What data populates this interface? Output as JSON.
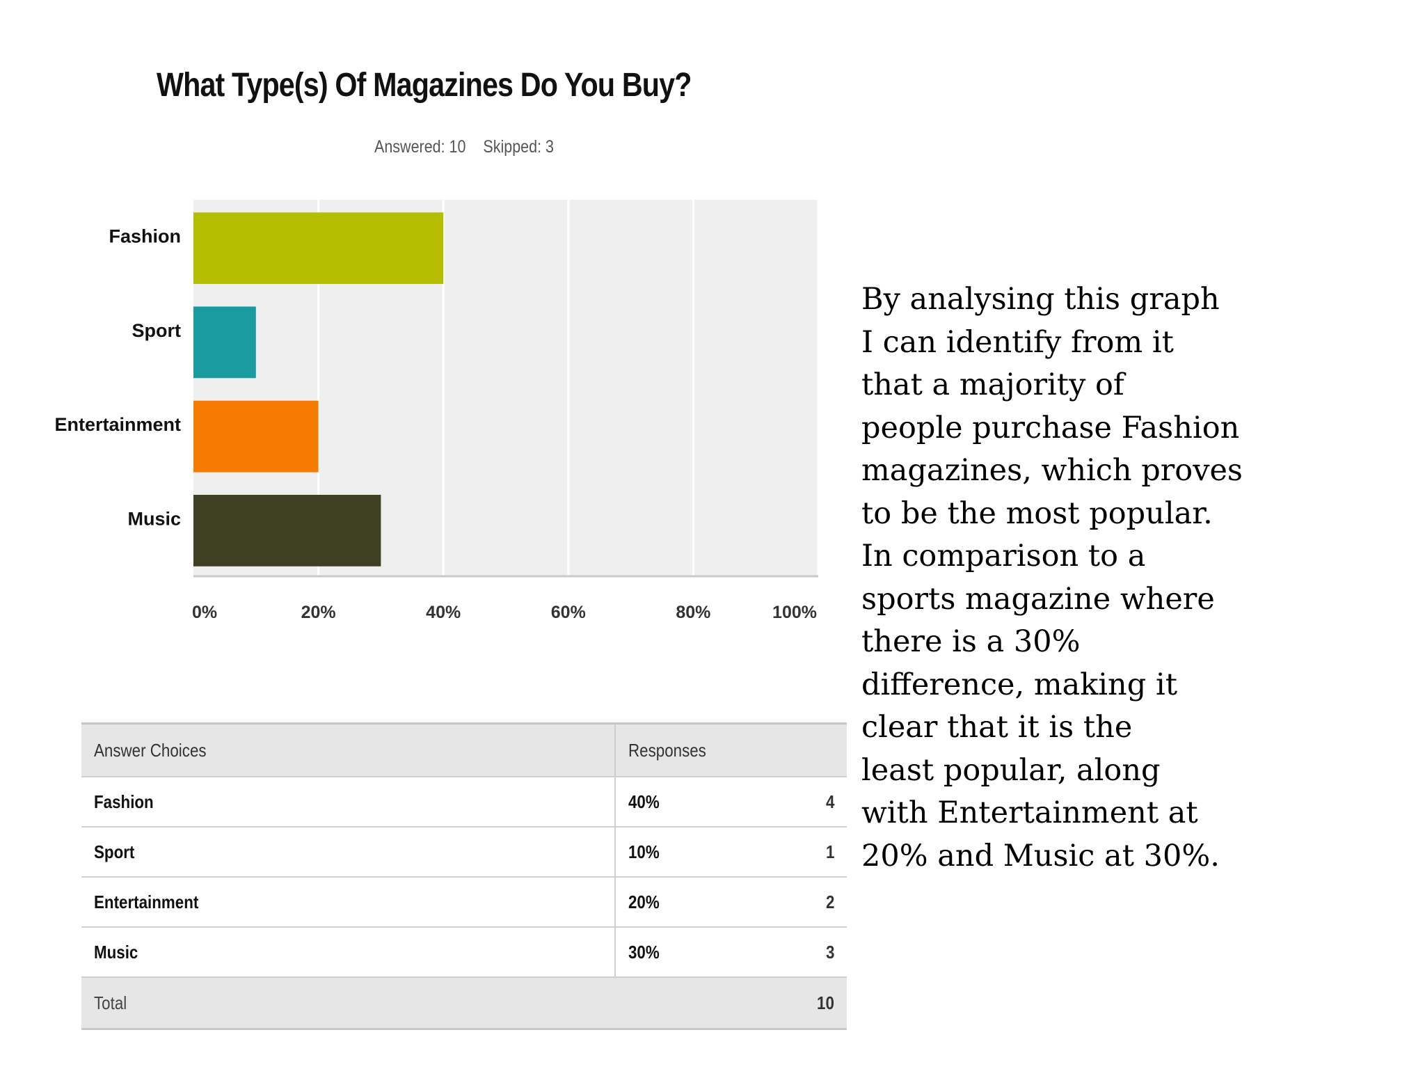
{
  "chart_data": {
    "type": "bar",
    "orientation": "horizontal",
    "title": "What Type(s) Of Magazines Do You Buy?",
    "subtitle": {
      "answered": "Answered: 10",
      "skipped": "Skipped: 3"
    },
    "categories": [
      "Fashion",
      "Sport",
      "Entertainment",
      "Music"
    ],
    "values": [
      40,
      10,
      20,
      30
    ],
    "colors": [
      "#b5bd00",
      "#1a9ba0",
      "#f57c00",
      "#3f4023"
    ],
    "xlim": [
      0,
      100
    ],
    "ticks": [
      "0%",
      "20%",
      "40%",
      "60%",
      "80%",
      "100%"
    ],
    "tick_values": [
      0,
      20,
      40,
      60,
      80,
      100
    ],
    "grid": true,
    "plot_background": "#efefef"
  },
  "table": {
    "headers": {
      "choice": "Answer Choices",
      "responses": "Responses"
    },
    "rows": [
      {
        "choice": "Fashion",
        "percent": "40%",
        "count": "4"
      },
      {
        "choice": "Sport",
        "percent": "10%",
        "count": "1"
      },
      {
        "choice": "Entertainment",
        "percent": "20%",
        "count": "2"
      },
      {
        "choice": "Music",
        "percent": "30%",
        "count": "3"
      }
    ],
    "total_label": "Total",
    "total_value": "10"
  },
  "analysis": "By analysing this graph\nI can identify from it\nthat a majority of\npeople purchase Fashion\nmagazines, which proves\nto be the most popular.\nIn comparison to a\nsports magazine where\nthere is a 30%\ndifference, making it\nclear that it is the\nleast popular, along\nwith Entertainment at\n20% and Music at 30%."
}
